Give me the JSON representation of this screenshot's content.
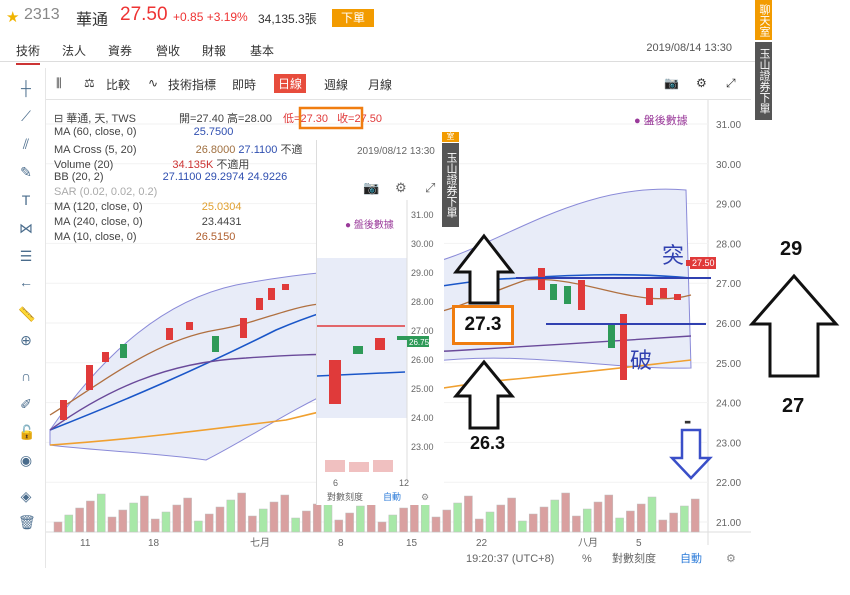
{
  "header": {
    "code": "2313",
    "name": "華通",
    "price": "27.50",
    "change": "+0.85 +3.19%",
    "volume": "34,135.3張",
    "order_label": "下單"
  },
  "tabs": [
    "技術",
    "法人",
    "資券",
    "營收",
    "財報",
    "基本"
  ],
  "datetime": "2019/08/14 13:30",
  "side_buttons": {
    "chat": "聊天室",
    "broker": "玉山證券下單"
  },
  "toolbar": {
    "compare": "比較",
    "indicators": "技術指標",
    "intraday": "即時",
    "daily": "日線",
    "weekly": "週線",
    "monthly": "月線"
  },
  "legend": {
    "title": "華通, 天, TWS",
    "open": "開=27.40",
    "high": "高=28.00",
    "low": "低=27.30",
    "close": "收=27.50",
    "ma60": "MA (60, close, 0)",
    "ma60_val": "25.7500",
    "macross": "MA Cross (5, 20)",
    "macross_v1": "26.8000",
    "macross_v2": "27.1100",
    "macross_v3": "不適",
    "vol": "Volume (20)",
    "vol_v1": "34.135K",
    "vol_v2": "不適用",
    "bb": "BB (20, 2)",
    "bb_v1": "27.1100",
    "bb_v2": "29.2974",
    "bb_v3": "24.9226",
    "sar": "SAR (0.02, 0.02, 0.2)",
    "ma120": "MA (120, close, 0)",
    "ma120_val": "25.0304",
    "ma240": "MA (240, close, 0)",
    "ma240_val": "23.4431",
    "ma10": "MA (10, close, 0)",
    "ma10_val": "26.5150",
    "after_hours": "盤後數據"
  },
  "overlay": {
    "datetime": "2019/08/12 13:30",
    "after_hours": "盤後數據",
    "price_label": "26.75",
    "broker": "玉山證券下單",
    "log_scale": "對數刻度",
    "auto": "自動",
    "chat": "室"
  },
  "axis": {
    "y_ticks": [
      "31.00",
      "30.00",
      "29.00",
      "28.00",
      "27.00",
      "26.00",
      "25.00",
      "24.00",
      "23.00",
      "22.00",
      "21.00"
    ],
    "overlay_y_ticks": [
      "31.00",
      "30.00",
      "29.00",
      "28.00",
      "27.00",
      "26.00",
      "25.00",
      "24.00",
      "23.00"
    ],
    "overlay_x_ticks": [
      "6",
      "12"
    ],
    "x_ticks": [
      "11",
      "18",
      "七月",
      "8",
      "15",
      "22",
      "八月",
      "5"
    ],
    "last_price": "27.50",
    "time": "19:20:37 (UTC+8)",
    "percent": "%",
    "log_scale": "對數刻度",
    "auto": "自動"
  },
  "annotations": {
    "label_27_3": "27.3",
    "label_26_3": "26.3",
    "label_29": "29",
    "label_27": "27",
    "breakout": "突",
    "breakdown": "破",
    "dash": "-",
    "orange": "#f07d10",
    "blue": "#3040b0"
  },
  "colors": {
    "up": "#e03a3a",
    "down": "#2e9a58",
    "accent": "#f29b00"
  }
}
